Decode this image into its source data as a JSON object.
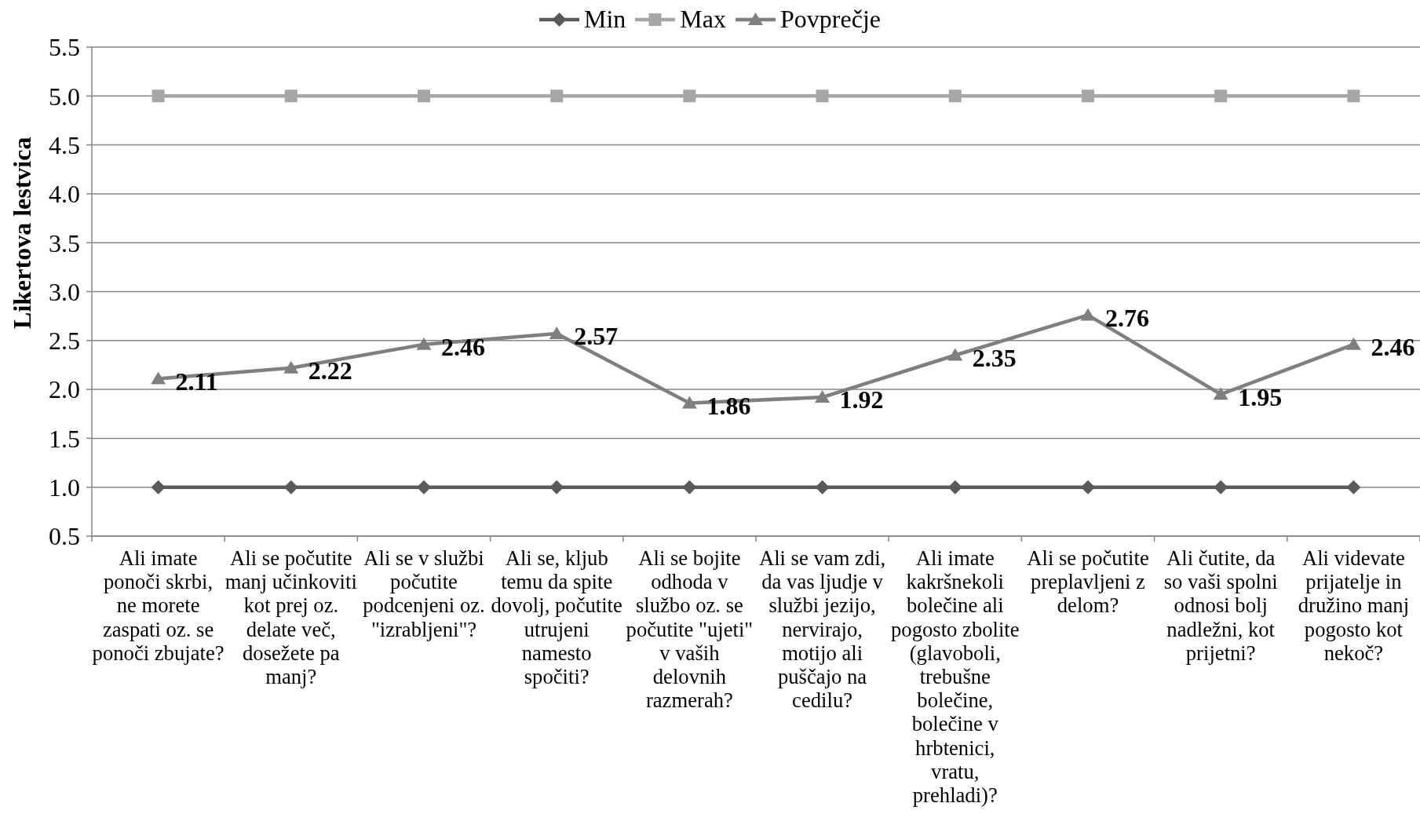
{
  "chart_data": {
    "type": "line",
    "categories": [
      "Ali imate ponoči skrbi, ne morete zaspati oz. se ponoči zbujate?",
      "Ali se počutite manj učinkoviti kot prej oz. delate več, dosežete pa manj?",
      "Ali se v službi počutite podcenjeni oz. \"izrabljeni\"?",
      "Ali se, kljub temu da spite dovolj, počutite utrujeni namesto spočiti?",
      "Ali se bojite odhoda v službo oz. se počutite \"ujeti\" v vaših delovnih razmerah?",
      "Ali se vam zdi, da vas ljudje v službi jezijo, nervirajo, motijo ali puščajo na cedilu?",
      "Ali imate kakršnekoli bolečine ali pogosto zbolite (glavoboli, trebušne bolečine, bolečine v hrbtenici, vratu, prehladi)?",
      "Ali se počutite preplavljeni z delom?",
      "Ali čutite, da so vaši spolni odnosi bolj nadležni, kot prijetni?",
      "Ali videvate prijatelje in družino manj pogosto kot nekoč?"
    ],
    "series": [
      {
        "name": "Min",
        "color": "#5a5a5a",
        "marker": "diamond",
        "values": [
          1,
          1,
          1,
          1,
          1,
          1,
          1,
          1,
          1,
          1
        ]
      },
      {
        "name": "Max",
        "color": "#a6a6a6",
        "marker": "square",
        "values": [
          5,
          5,
          5,
          5,
          5,
          5,
          5,
          5,
          5,
          5
        ]
      },
      {
        "name": "Povprečje",
        "color": "#7f7f7f",
        "marker": "triangle",
        "values": [
          2.11,
          2.22,
          2.46,
          2.57,
          1.86,
          1.92,
          2.35,
          2.76,
          1.95,
          2.46
        ],
        "value_labels": [
          "2.11",
          "2.22",
          "2.46",
          "2.57",
          "1.86",
          "1.92",
          "2.35",
          "2.76",
          "1.95",
          "2.46"
        ]
      }
    ],
    "ylabel": "Likertova lestvica",
    "ylim": [
      0.5,
      5.5
    ],
    "yticks": [
      0.5,
      {
        "value": 1,
        "label": "1.0"
      },
      1.5,
      {
        "value": 2,
        "label": "2.0"
      },
      2.5,
      {
        "value": 3,
        "label": "3.0"
      },
      3.5,
      {
        "value": 4,
        "label": "4.0"
      },
      4.5,
      {
        "value": 5,
        "label": "5.0"
      },
      5.5
    ],
    "grid": "y",
    "legend": "top"
  }
}
